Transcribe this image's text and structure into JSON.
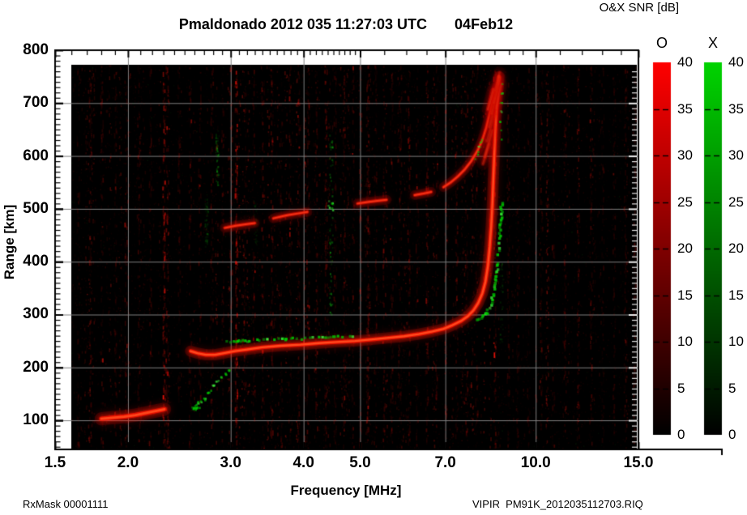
{
  "header": {
    "title_main": "Pmaldonado 2012 035 11:27:03 UTC",
    "title_date": "04Feb12"
  },
  "footer": {
    "rxmask": "RxMask 00001111",
    "filename": "VIPIR  PM91K_2012035112703.RIQ"
  },
  "chart_data": {
    "type": "heatmap",
    "title": "Pmaldonado 2012 035 11:27:03 UTC",
    "date_annotation": "04Feb12",
    "xlabel": "Frequency [MHz]",
    "ylabel": "Range [km]",
    "x_scale": "log",
    "xlim": [
      1.5,
      15.0
    ],
    "ylim": [
      45,
      800
    ],
    "grid": true,
    "grid_color": "#7f7f7f",
    "plot_bg": "#000000",
    "frame_color": "#000000",
    "data_extent": {
      "f_mhz": [
        1.6,
        14.97
      ],
      "range_km": [
        45,
        772
      ]
    },
    "x_ticks": {
      "values": [
        1.5,
        2,
        3,
        4,
        5,
        7,
        10,
        15
      ],
      "labels": [
        "1.5",
        "2.0",
        "3.0",
        "4.0",
        "5.0",
        "7.0",
        "10.0",
        "15.0"
      ]
    },
    "x_minor_ticks": [
      1.6,
      1.7,
      1.8,
      1.9,
      2.1,
      2.2,
      2.3,
      2.4,
      2.5,
      2.6,
      2.7,
      2.8,
      2.9,
      3.1,
      3.2,
      3.3,
      3.4,
      3.5,
      3.6,
      3.7,
      3.8,
      3.9,
      4.1,
      4.2,
      4.3,
      4.4,
      4.5,
      4.6,
      4.7,
      4.8,
      4.9,
      5.5,
      6,
      6.5,
      7.5,
      8,
      8.5,
      9,
      9.5,
      11,
      12,
      13,
      14
    ],
    "y_ticks": {
      "values": [
        800,
        700,
        600,
        500,
        400,
        300,
        200,
        100
      ],
      "labels": [
        "800",
        "700",
        "600",
        "500",
        "400",
        "300",
        "200",
        "100"
      ]
    },
    "y_minor_step": 10,
    "colorbar_panel": {
      "title": "O&X SNR [dB]",
      "min": 0,
      "max": 40,
      "ticks": [
        40,
        35,
        30,
        25,
        20,
        15,
        10,
        5,
        0
      ],
      "tick_labels": [
        "40",
        "35",
        "30",
        "25",
        "20",
        "15",
        "10",
        "5",
        "0"
      ],
      "bars": [
        {
          "name": "O",
          "top_color": "#ff0000",
          "bottom_color": "#000000"
        },
        {
          "name": "X",
          "top_color": "#00d400",
          "bottom_color": "#000000"
        }
      ]
    },
    "traces": [
      {
        "name": "E-region O-mode echo",
        "mode": "O",
        "style": "smooth",
        "color": "#ff1400",
        "core": "#ff4a1e",
        "width": 5.5,
        "alpha": 0.95,
        "blur": 5,
        "segments": [
          [
            [
              1.8,
              103
            ],
            [
              1.88,
              105
            ],
            [
              1.97,
              107
            ],
            [
              2.06,
              110
            ],
            [
              2.15,
              114
            ],
            [
              2.24,
              118
            ],
            [
              2.31,
              121
            ]
          ]
        ]
      },
      {
        "name": "F-region O-mode trace",
        "mode": "O",
        "style": "smooth",
        "color": "#ff1400",
        "core": "#ff4a1e",
        "width": 4.6,
        "alpha": 1,
        "blur": 5,
        "segments": [
          [
            [
              2.56,
              231
            ],
            [
              2.63,
              227
            ],
            [
              2.72,
              224
            ],
            [
              2.82,
              224
            ],
            [
              2.92,
              227
            ],
            [
              3.05,
              231
            ],
            [
              3.2,
              234
            ],
            [
              3.4,
              238
            ],
            [
              3.65,
              241
            ],
            [
              3.95,
              243
            ],
            [
              4.25,
              246
            ],
            [
              4.55,
              248
            ],
            [
              4.9,
              250
            ],
            [
              5.25,
              253
            ],
            [
              5.6,
              256
            ],
            [
              5.95,
              259
            ],
            [
              6.3,
              263
            ],
            [
              6.65,
              268
            ],
            [
              6.95,
              273
            ],
            [
              7.2,
              280
            ],
            [
              7.45,
              288
            ],
            [
              7.65,
              297
            ],
            [
              7.82,
              308
            ],
            [
              7.97,
              322
            ],
            [
              8.1,
              340
            ],
            [
              8.2,
              362
            ],
            [
              8.28,
              392
            ],
            [
              8.34,
              428
            ],
            [
              8.39,
              468
            ],
            [
              8.43,
              512
            ],
            [
              8.46,
              556
            ],
            [
              8.49,
              600
            ],
            [
              8.52,
              642
            ],
            [
              8.56,
              684
            ],
            [
              8.6,
              722
            ],
            [
              8.65,
              750
            ]
          ]
        ]
      },
      {
        "name": "F-region X-mode trace flat part",
        "mode": "X",
        "style": "patchy",
        "color": "#00cc00",
        "core": "#3bee3b",
        "width": 3.2,
        "alpha": 0.95,
        "segments": [
          [
            [
              2.95,
              250
            ],
            [
              3.08,
              252
            ],
            [
              3.22,
              253
            ]
          ],
          [
            [
              3.32,
              254
            ],
            [
              3.44,
              255
            ]
          ],
          [
            [
              3.55,
              255
            ],
            [
              3.72,
              256
            ],
            [
              3.86,
              257
            ]
          ],
          [
            [
              3.96,
              257
            ],
            [
              4.12,
              258
            ],
            [
              4.28,
              258
            ],
            [
              4.42,
              259
            ],
            [
              4.55,
              260
            ],
            [
              4.65,
              260
            ]
          ],
          [
            [
              4.74,
              261
            ],
            [
              4.84,
              261
            ]
          ]
        ]
      },
      {
        "name": "F-region X-mode cusp",
        "mode": "X",
        "style": "patchy",
        "color": "#00cc00",
        "core": "#3bee3b",
        "width": 3.4,
        "alpha": 0.95,
        "segments": [
          [
            [
              7.88,
              291
            ],
            [
              8.05,
              297
            ],
            [
              8.2,
              306
            ],
            [
              8.33,
              320
            ],
            [
              8.43,
              342
            ],
            [
              8.5,
              368
            ],
            [
              8.56,
              398
            ],
            [
              8.61,
              428
            ],
            [
              8.65,
              458
            ],
            [
              8.68,
              488
            ],
            [
              8.7,
              515
            ]
          ]
        ]
      },
      {
        "name": "second-hop O-mode echo",
        "mode": "O",
        "style": "smooth",
        "color": "#e81000",
        "core": "#ff3b1a",
        "width": 4,
        "alpha": 0.8,
        "blur": 4,
        "segments": [
          [
            [
              2.93,
              464
            ],
            [
              3.06,
              468
            ],
            [
              3.2,
              471
            ],
            [
              3.3,
              473
            ]
          ],
          [
            [
              3.55,
              482
            ],
            [
              3.75,
              488
            ],
            [
              3.95,
              492
            ],
            [
              4.06,
              494
            ]
          ],
          [
            [
              4.95,
              510
            ],
            [
              5.15,
              513
            ],
            [
              5.35,
              515
            ],
            [
              5.55,
              517
            ]
          ],
          [
            [
              6.2,
              526
            ],
            [
              6.42,
              529
            ],
            [
              6.62,
              532
            ]
          ],
          [
            [
              6.95,
              541
            ],
            [
              7.15,
              550
            ],
            [
              7.35,
              561
            ],
            [
              7.55,
              574
            ],
            [
              7.75,
              590
            ],
            [
              7.95,
              610
            ],
            [
              8.1,
              630
            ],
            [
              8.22,
              652
            ],
            [
              8.32,
              676
            ],
            [
              8.42,
              700
            ],
            [
              8.5,
              722
            ]
          ]
        ]
      },
      {
        "name": "spread-F diffuse top",
        "mode": "O",
        "style": "streaks",
        "color": "#d01000",
        "core": "#e83318",
        "width": 5,
        "alpha": 0.38,
        "blur": 6,
        "segments": [
          [
            [
              8.12,
              585
            ],
            [
              8.32,
              622
            ]
          ],
          [
            [
              8.18,
              598
            ],
            [
              8.42,
              648
            ]
          ],
          [
            [
              8.25,
              628
            ],
            [
              8.5,
              680
            ]
          ],
          [
            [
              8.32,
              655
            ],
            [
              8.56,
              706
            ]
          ],
          [
            [
              8.4,
              680
            ],
            [
              8.62,
              730
            ]
          ],
          [
            [
              8.47,
              700
            ],
            [
              8.68,
              748
            ]
          ],
          [
            [
              8.28,
              688
            ],
            [
              8.46,
              726
            ]
          ],
          [
            [
              8.52,
              724
            ],
            [
              8.67,
              758
            ]
          ],
          [
            [
              8.56,
              690
            ],
            [
              8.73,
              736
            ]
          ]
        ]
      },
      {
        "name": "low-altitude X-mode scatter",
        "mode": "X",
        "style": "dots",
        "color": "#00cc00",
        "core": "#3bee3b",
        "size": 2.6,
        "alpha": 0.75,
        "points": [
          [
            2.58,
            124
          ],
          [
            2.6,
            127
          ],
          [
            2.59,
            126
          ],
          [
            2.61,
            124
          ],
          [
            2.62,
            131
          ],
          [
            2.63,
            127
          ],
          [
            2.65,
            133
          ],
          [
            2.64,
            136
          ],
          [
            2.7,
            143
          ],
          [
            2.73,
            152
          ],
          [
            2.76,
            160
          ],
          [
            2.8,
            168
          ],
          [
            2.84,
            175
          ],
          [
            2.88,
            182
          ],
          [
            2.93,
            190
          ],
          [
            2.97,
            196
          ]
        ]
      },
      {
        "name": "sparse X-mode scatter",
        "mode": "X",
        "style": "dots",
        "color": "#00cc00",
        "core": "#3bee3b",
        "size": 2.4,
        "alpha": 0.7,
        "points": [
          [
            4.42,
            505
          ],
          [
            4.45,
            511
          ],
          [
            4.47,
            500
          ],
          [
            4.43,
            516
          ],
          [
            7.85,
            597
          ],
          [
            7.9,
            607
          ],
          [
            7.96,
            618
          ],
          [
            8.02,
            630
          ],
          [
            8.7,
            735
          ],
          [
            8.72,
            718
          ],
          [
            8.69,
            700
          ],
          [
            8.71,
            686
          ],
          [
            8.68,
            668
          ],
          [
            8.73,
            648
          ],
          [
            8.7,
            630
          ]
        ]
      }
    ],
    "rfi_columns": {
      "red": [
        [
          1.64,
          0.25
        ],
        [
          1.72,
          0.3
        ],
        [
          1.8,
          0.35
        ],
        [
          1.9,
          0.3
        ],
        [
          1.98,
          0.35
        ],
        [
          2.08,
          0.3
        ],
        [
          2.18,
          0.35
        ],
        [
          2.3,
          0.8
        ],
        [
          2.33,
          0.5
        ],
        [
          2.44,
          0.3
        ],
        [
          2.55,
          0.35
        ],
        [
          2.65,
          0.3
        ],
        [
          2.78,
          0.35
        ],
        [
          2.9,
          0.3
        ],
        [
          3.0,
          0.45
        ],
        [
          3.06,
          0.85
        ],
        [
          3.17,
          0.3
        ],
        [
          3.28,
          0.35
        ],
        [
          3.4,
          0.4
        ],
        [
          3.52,
          0.45
        ],
        [
          3.65,
          0.3
        ],
        [
          3.78,
          0.3
        ],
        [
          3.92,
          0.35
        ],
        [
          4.06,
          0.4
        ],
        [
          4.2,
          0.3
        ],
        [
          4.36,
          0.45
        ],
        [
          4.52,
          0.3
        ],
        [
          4.68,
          0.35
        ],
        [
          4.85,
          0.3
        ],
        [
          5.0,
          0.35
        ],
        [
          5.14,
          0.55
        ],
        [
          5.3,
          0.3
        ],
        [
          5.48,
          0.35
        ],
        [
          5.65,
          0.3
        ],
        [
          5.85,
          0.3
        ],
        [
          6.05,
          0.35
        ],
        [
          6.25,
          0.3
        ],
        [
          6.5,
          0.4
        ],
        [
          6.75,
          0.3
        ],
        [
          7.0,
          0.3
        ],
        [
          7.3,
          0.35
        ],
        [
          7.6,
          0.3
        ],
        [
          7.9,
          0.3
        ],
        [
          8.49,
          0.5
        ],
        [
          8.95,
          0.35
        ],
        [
          9.3,
          0.3
        ],
        [
          9.7,
          0.25
        ],
        [
          10.2,
          0.3
        ],
        [
          10.7,
          0.25
        ],
        [
          11.2,
          0.3
        ],
        [
          11.8,
          0.25
        ],
        [
          12.4,
          0.3
        ],
        [
          13.0,
          0.25
        ],
        [
          13.6,
          0.3
        ],
        [
          14.2,
          0.25
        ],
        [
          14.75,
          0.3
        ]
      ],
      "green": [
        [
          4.45,
          0.55,
          290,
          660
        ],
        [
          2.84,
          0.4,
          545,
          650
        ],
        [
          2.72,
          0.3,
          425,
          520
        ],
        [
          8.72,
          0.22,
          240,
          400
        ],
        [
          3.3,
          0.15,
          430,
          520
        ]
      ]
    },
    "speckle": {
      "seed": 1337,
      "red_dots": 5200,
      "green_dots": 550,
      "stripes": 260
    }
  }
}
